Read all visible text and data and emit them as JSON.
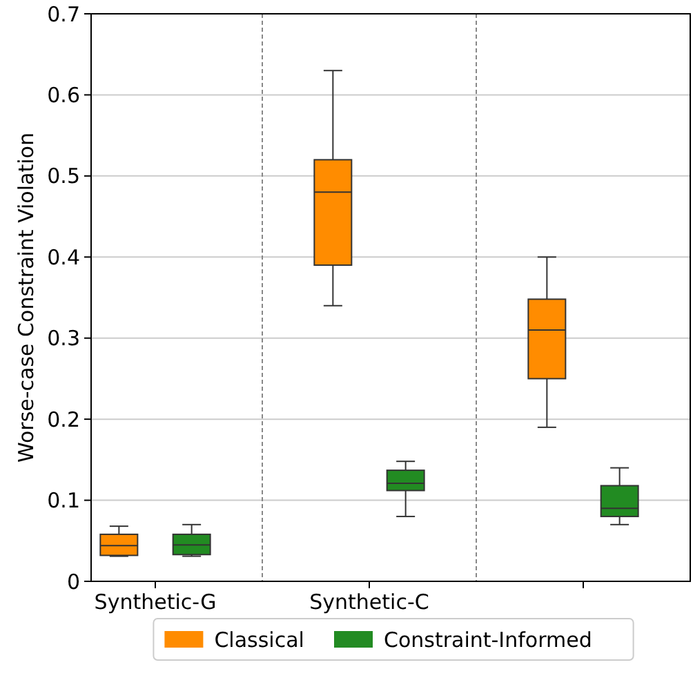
{
  "chart_data": {
    "type": "box",
    "ylabel": "Worse-case Constraint Violation",
    "categories": [
      "Synthetic-G",
      "Synthetic-C",
      null
    ],
    "ylim": [
      0,
      0.7
    ],
    "yticks": [
      0,
      0.1,
      0.2,
      0.3,
      0.4,
      0.5,
      0.6,
      0.7
    ],
    "grid": "y",
    "legend": "bottom",
    "series": [
      {
        "name": "Classical",
        "color": "#ff8c00",
        "boxes": [
          {
            "low": 0.031,
            "q1": 0.032,
            "median": 0.044,
            "q3": 0.058,
            "high": 0.068
          },
          {
            "low": 0.34,
            "q1": 0.39,
            "median": 0.48,
            "q3": 0.52,
            "high": 0.63
          },
          {
            "low": 0.19,
            "q1": 0.25,
            "median": 0.31,
            "q3": 0.348,
            "high": 0.4
          }
        ]
      },
      {
        "name": "Constraint-Informed",
        "color": "#228b22",
        "boxes": [
          {
            "low": 0.031,
            "q1": 0.033,
            "median": 0.045,
            "q3": 0.058,
            "high": 0.07
          },
          {
            "low": 0.08,
            "q1": 0.112,
            "median": 0.121,
            "q3": 0.137,
            "high": 0.148
          },
          {
            "low": 0.07,
            "q1": 0.08,
            "median": 0.09,
            "q3": 0.118,
            "high": 0.14
          }
        ]
      }
    ]
  }
}
